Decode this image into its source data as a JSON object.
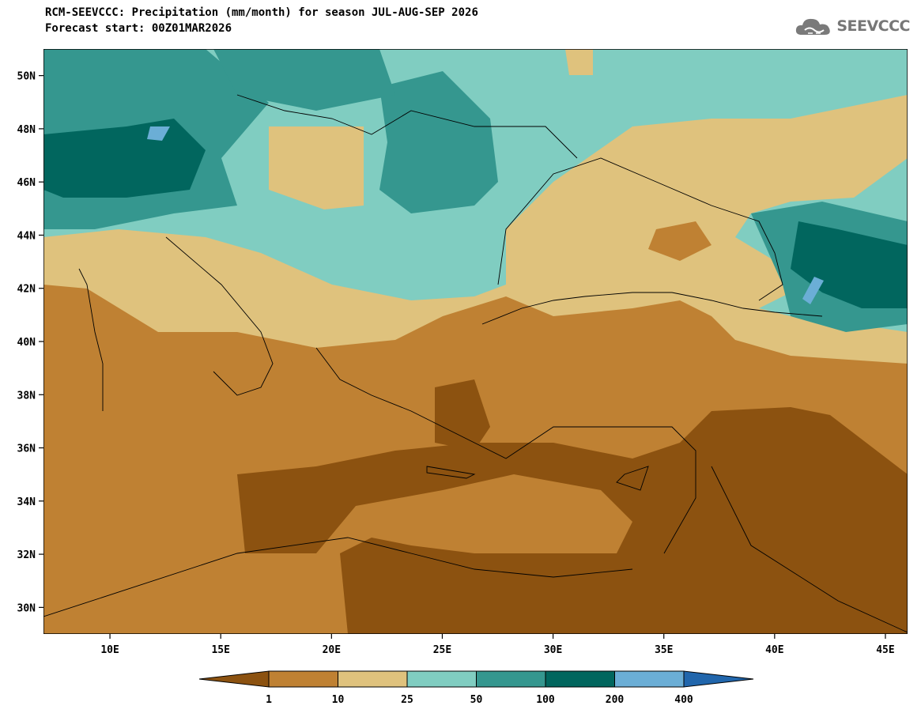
{
  "header": {
    "title": "RCM-SEEVCCC: Precipitation (mm/month) for season JUL-AUG-SEP 2026",
    "subtitle": "Forecast start: 00Z01MAR2026"
  },
  "logo": {
    "text": "SEEVCCC",
    "icon": "cloud-logo-icon"
  },
  "map": {
    "lon_range": [
      7,
      46
    ],
    "lat_range": [
      29,
      51
    ],
    "lat_ticks": [
      "30N",
      "32N",
      "34N",
      "36N",
      "38N",
      "40N",
      "42N",
      "44N",
      "46N",
      "48N",
      "50N"
    ],
    "lon_ticks": [
      "10E",
      "15E",
      "20E",
      "25E",
      "30E",
      "35E",
      "40E",
      "45E"
    ]
  },
  "legend": {
    "labels": [
      "1",
      "10",
      "25",
      "50",
      "100",
      "200",
      "400"
    ],
    "colors": [
      "#8c5210",
      "#bf8133",
      "#dfc27d",
      "#80cdc1",
      "#35978f",
      "#01665e",
      "#6baed6",
      "#2166ac"
    ]
  }
}
